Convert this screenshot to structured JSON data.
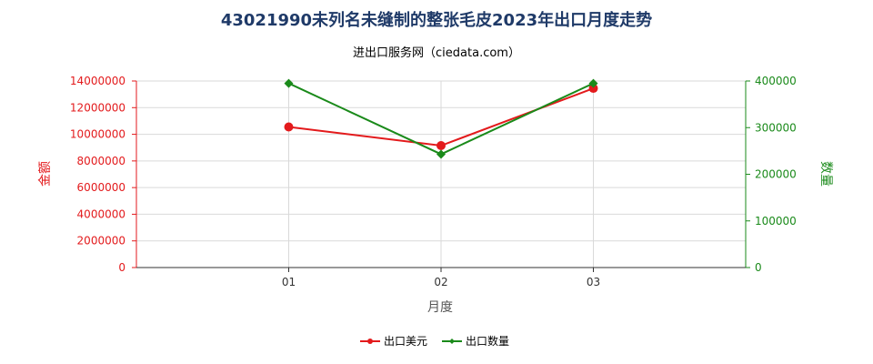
{
  "chart_data": {
    "type": "line",
    "title": "43021990未列名未缝制的整张毛皮2023年出口月度走势",
    "subtitle": "进出口服务网（ciedata.com）",
    "xlabel": "月度",
    "ylabel_left": "金额",
    "ylabel_right": "数量",
    "categories": [
      "01",
      "02",
      "03"
    ],
    "ylim_left": [
      0,
      14000000
    ],
    "ylim_right": [
      0,
      400000
    ],
    "yticks_left": [
      "0",
      "2000000",
      "4000000",
      "6000000",
      "8000000",
      "10000000",
      "12000000",
      "14000000"
    ],
    "yticks_right": [
      "0",
      "100000",
      "200000",
      "300000",
      "400000"
    ],
    "grid": true,
    "legend_position": "bottom",
    "series": [
      {
        "name": "出口美元",
        "axis": "left",
        "color": "#e31a1c",
        "marker": "circle",
        "values": [
          10550000,
          9150000,
          13450000
        ]
      },
      {
        "name": "出口数量",
        "axis": "right",
        "color": "#1a8a1a",
        "marker": "diamond",
        "values": [
          395000,
          243000,
          395000
        ]
      }
    ]
  }
}
